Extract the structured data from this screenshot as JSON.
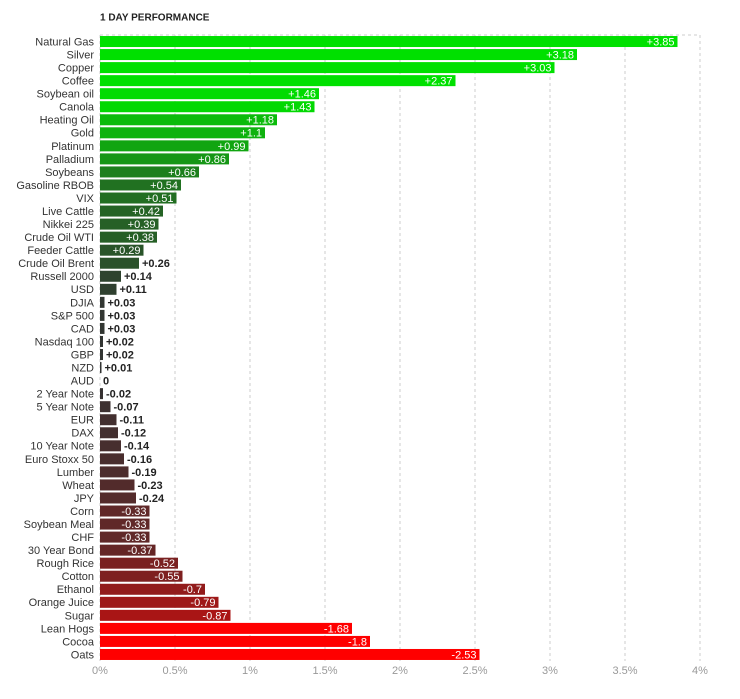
{
  "chart_data": {
    "type": "bar",
    "orientation": "horizontal",
    "title": "1 DAY PERFORMANCE",
    "categories": [
      "Natural Gas",
      "Silver",
      "Copper",
      "Coffee",
      "Soybean oil",
      "Canola",
      "Heating Oil",
      "Gold",
      "Platinum",
      "Palladium",
      "Soybeans",
      "Gasoline RBOB",
      "VIX",
      "Live Cattle",
      "Nikkei 225",
      "Crude Oil WTI",
      "Feeder Cattle",
      "Crude Oil Brent",
      "Russell 2000",
      "USD",
      "DJIA",
      "S&P 500",
      "CAD",
      "Nasdaq 100",
      "GBP",
      "NZD",
      "AUD",
      "2 Year Note",
      "5 Year Note",
      "EUR",
      "DAX",
      "10 Year Note",
      "Euro Stoxx 50",
      "Lumber",
      "Wheat",
      "JPY",
      "Corn",
      "Soybean Meal",
      "CHF",
      "30 Year Bond",
      "Rough Rice",
      "Cotton",
      "Ethanol",
      "Orange Juice",
      "Sugar",
      "Lean Hogs",
      "Cocoa",
      "Oats"
    ],
    "values": [
      3.85,
      3.18,
      3.03,
      2.37,
      1.46,
      1.43,
      1.18,
      1.1,
      0.99,
      0.86,
      0.66,
      0.54,
      0.51,
      0.42,
      0.39,
      0.38,
      0.29,
      0.26,
      0.14,
      0.11,
      0.03,
      0.03,
      0.03,
      0.02,
      0.02,
      0.01,
      0,
      -0.02,
      -0.07,
      -0.11,
      -0.12,
      -0.14,
      -0.16,
      -0.19,
      -0.23,
      -0.24,
      -0.33,
      -0.33,
      -0.33,
      -0.37,
      -0.52,
      -0.55,
      -0.7,
      -0.79,
      -0.87,
      -1.68,
      -1.8,
      -2.53
    ],
    "value_labels": [
      "+3.85",
      "+3.18",
      "+3.03",
      "+2.37",
      "+1.46",
      "+1.43",
      "+1.18",
      "+1.1",
      "+0.99",
      "+0.86",
      "+0.66",
      "+0.54",
      "+0.51",
      "+0.42",
      "+0.39",
      "+0.38",
      "+0.29",
      "+0.26",
      "+0.14",
      "+0.11",
      "+0.03",
      "+0.03",
      "+0.03",
      "+0.02",
      "+0.02",
      "+0.01",
      "0",
      "-0.02",
      "-0.07",
      "-0.11",
      "-0.12",
      "-0.14",
      "-0.16",
      "-0.19",
      "-0.23",
      "-0.24",
      "-0.33",
      "-0.33",
      "-0.33",
      "-0.37",
      "-0.52",
      "-0.55",
      "-0.7",
      "-0.79",
      "-0.87",
      "-1.68",
      "-1.8",
      "-2.53"
    ],
    "colors": {
      "positive": "#00e000",
      "negative": "#ff0000",
      "zero": "#333333"
    },
    "xlim": [
      0,
      4
    ],
    "xticks": [
      {
        "value": 0,
        "label": "0%"
      },
      {
        "value": 0.5,
        "label": "0.5%"
      },
      {
        "value": 1,
        "label": "1%"
      },
      {
        "value": 1.5,
        "label": "1.5%"
      },
      {
        "value": 2,
        "label": "2%"
      },
      {
        "value": 2.5,
        "label": "2.5%"
      },
      {
        "value": 3,
        "label": "3%"
      },
      {
        "value": 3.5,
        "label": "3.5%"
      },
      {
        "value": 4,
        "label": "4%"
      }
    ],
    "grid": true
  }
}
